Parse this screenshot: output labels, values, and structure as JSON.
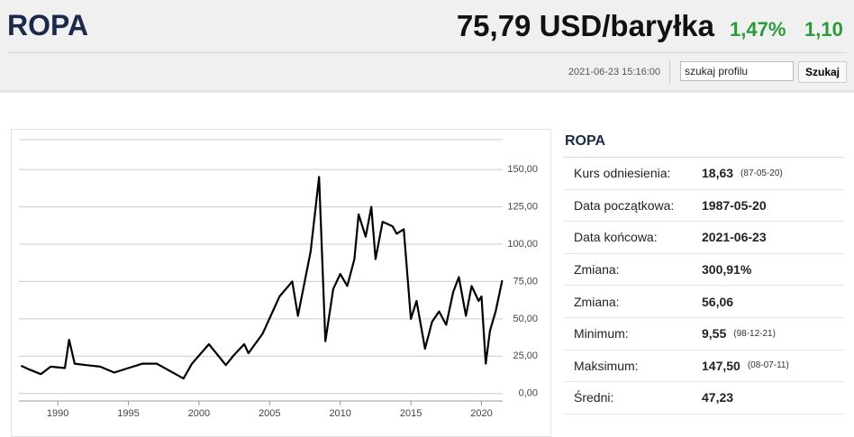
{
  "header": {
    "title": "ROPA",
    "price": "75,79 USD/baryłka",
    "change_pct": "1,47%",
    "change_abs": "1,10",
    "timestamp": "2021-06-23 15:16:00",
    "search_placeholder": "szukaj profilu",
    "search_button": "Szukaj"
  },
  "stats": {
    "title": "ROPA",
    "rows": [
      {
        "label": "Kurs odniesienia:",
        "value": "18,63",
        "note": "(87-05-20)"
      },
      {
        "label": "Data początkowa:",
        "value": "1987-05-20"
      },
      {
        "label": "Data końcowa:",
        "value": "2021-06-23"
      },
      {
        "label": "Zmiana:",
        "value": "300,91%"
      },
      {
        "label": "Zmiana:",
        "value": "56,06"
      },
      {
        "label": "Minimum:",
        "value": "9,55",
        "note": "(98-12-21)"
      },
      {
        "label": "Maksimum:",
        "value": "147,50",
        "note": "(08-07-11)"
      },
      {
        "label": "Średni:",
        "value": "47,23"
      }
    ]
  },
  "chart_data": {
    "type": "line",
    "color": "#000000",
    "grid": true,
    "x": [
      1987.4,
      1988,
      1988.8,
      1989.5,
      1990.5,
      1990.8,
      1991.2,
      1992,
      1993,
      1994,
      1995,
      1996,
      1997,
      1998.9,
      1999.5,
      2000.7,
      2001.9,
      2002.5,
      2003.2,
      2003.5,
      2004.5,
      2005.7,
      2006.6,
      2007.0,
      2007.9,
      2008.5,
      2008.95,
      2009.5,
      2010.0,
      2010.5,
      2011.0,
      2011.3,
      2011.8,
      2012.2,
      2012.5,
      2013.0,
      2013.7,
      2014.0,
      2014.5,
      2015.0,
      2015.4,
      2016.0,
      2016.5,
      2017.0,
      2017.5,
      2018.0,
      2018.4,
      2018.9,
      2019.3,
      2019.8,
      2020.0,
      2020.3,
      2020.6,
      2021.0,
      2021.47
    ],
    "values": [
      18.6,
      16,
      13,
      18,
      17,
      36,
      20,
      19,
      18,
      14,
      17,
      20,
      20,
      10,
      20,
      33,
      19,
      26,
      33,
      27,
      40,
      65,
      75,
      52,
      95,
      145,
      35,
      70,
      80,
      72,
      90,
      120,
      105,
      125,
      90,
      115,
      112,
      107,
      110,
      50,
      62,
      30,
      48,
      55,
      46,
      68,
      78,
      52,
      72,
      62,
      65,
      20,
      42,
      55,
      75.79
    ],
    "xlim": [
      1987.25,
      2021.5
    ],
    "xticks": [
      1990,
      1995,
      2000,
      2005,
      2010,
      2015,
      2020
    ],
    "ylim": [
      -5,
      170
    ],
    "yticks": [
      {
        "value": 0,
        "label": "0,00"
      },
      {
        "value": 25,
        "label": "25,00"
      },
      {
        "value": 50,
        "label": "50,00"
      },
      {
        "value": 75,
        "label": "75,00"
      },
      {
        "value": 100,
        "label": "100,00"
      },
      {
        "value": 125,
        "label": "125,00"
      },
      {
        "value": 150,
        "label": "150,00"
      }
    ]
  }
}
